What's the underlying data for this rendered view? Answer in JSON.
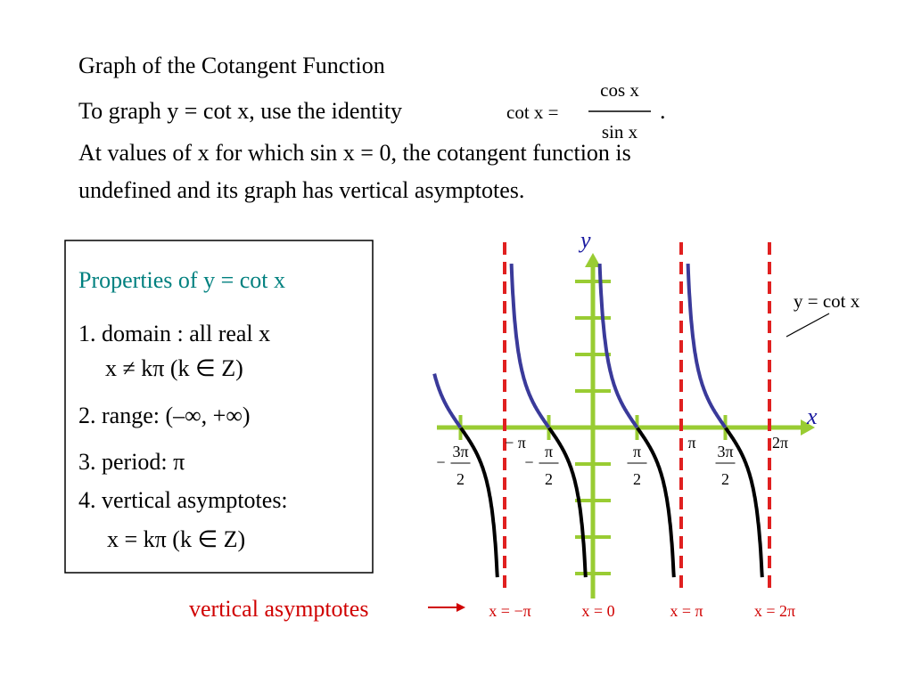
{
  "header": {
    "title": "Graph of the Cotangent Function"
  },
  "body": {
    "intro": "To graph y = cot x, use the identity",
    "identity": {
      "lhs": "cot x =",
      "numerator": "cos x",
      "denominator": "sin x",
      "end": "."
    },
    "lines": [
      "At values of x for which sin x = 0, the cotangent function is",
      "undefined and its graph has vertical asymptotes."
    ]
  },
  "properties": {
    "heading": "Properties of y = cot x",
    "items": [
      "1. domain : all real x",
      "x ≠ kπ (k ∈ Z)",
      "2. range: (–∞, +∞)",
      "3. period: π",
      "4. vertical asymptotes:",
      "x = kπ (k ∈ Z)"
    ]
  },
  "graph": {
    "y_axis_label": "y",
    "x_axis_label": "x",
    "curve_label": "y = cot x",
    "x_ticks": [
      {
        "sign": "−",
        "num": "3π",
        "den": "2"
      },
      {
        "label": "− π"
      },
      {
        "sign": "−",
        "num": "π",
        "den": "2"
      },
      {
        "num": "π",
        "den": "2"
      },
      {
        "label": "π"
      },
      {
        "num": "3π",
        "den": "2"
      },
      {
        "label": "2π"
      }
    ],
    "asymptote_labels": [
      "x = −π",
      "x = 0",
      "x = π",
      "x = 2π"
    ],
    "asymptote_caption": "vertical asymptotes"
  }
}
